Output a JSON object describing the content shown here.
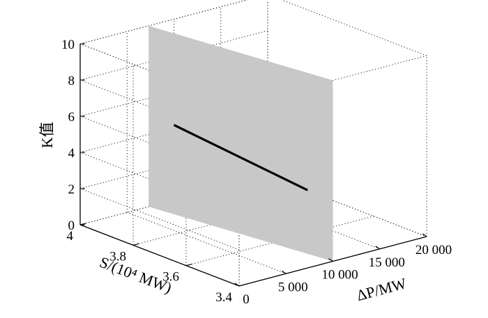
{
  "chart_data": {
    "type": "3d-line-plane",
    "axes": {
      "x": {
        "label": "ΔP/MW",
        "ticks": [
          0,
          5000,
          10000,
          15000,
          20000
        ],
        "tick_labels": [
          "0",
          "5 000",
          "10 000",
          "15 000",
          "20 000"
        ],
        "range": [
          0,
          20000
        ]
      },
      "y": {
        "label": "S/(10⁴ MW)",
        "ticks": [
          3.4,
          3.6,
          3.8,
          4.0
        ],
        "tick_labels": [
          "3.4",
          "3.6",
          "3.8",
          "4"
        ],
        "range": [
          3.4,
          4.0
        ]
      },
      "z": {
        "label": "K值",
        "ticks": [
          0,
          2,
          4,
          6,
          8,
          10
        ],
        "tick_labels": [
          "0",
          "2",
          "4",
          "6",
          "8",
          "10"
        ],
        "range": [
          0,
          10
        ]
      }
    },
    "grid": true,
    "series": [
      {
        "type": "line",
        "color": "#000000",
        "x": [
          7300,
          10000
        ],
        "y": [
          3.4,
          4.0
        ],
        "z": [
          4.3,
          4.15
        ]
      }
    ],
    "plane": {
      "color": "#c8c8c8",
      "x": [
        7300,
        10000
      ],
      "y": [
        3.4,
        4.0
      ],
      "z": [
        0,
        10
      ]
    }
  }
}
